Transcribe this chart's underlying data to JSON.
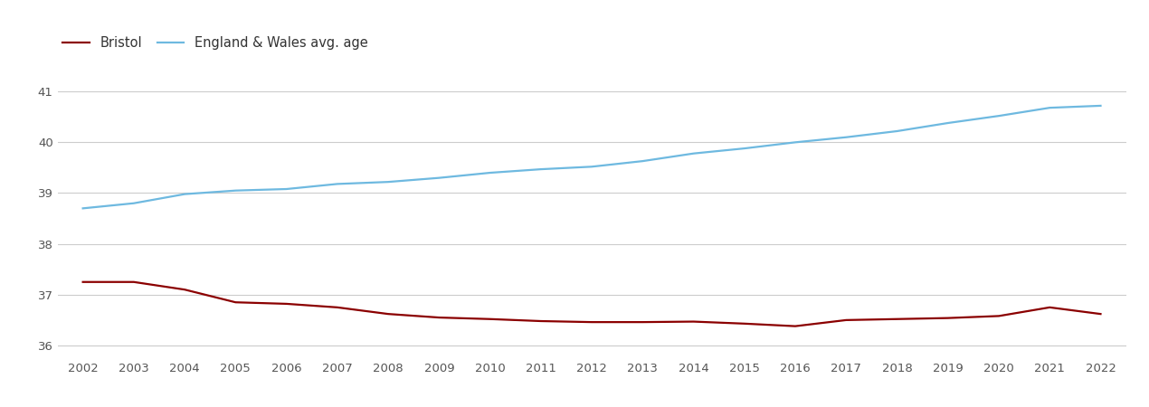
{
  "years": [
    2002,
    2003,
    2004,
    2005,
    2006,
    2007,
    2008,
    2009,
    2010,
    2011,
    2012,
    2013,
    2014,
    2015,
    2016,
    2017,
    2018,
    2019,
    2020,
    2021,
    2022
  ],
  "bristol": [
    37.25,
    37.25,
    37.1,
    36.85,
    36.82,
    36.75,
    36.62,
    36.55,
    36.52,
    36.48,
    36.46,
    36.46,
    36.47,
    36.43,
    36.38,
    36.5,
    36.52,
    36.54,
    36.58,
    36.75,
    36.62
  ],
  "england_wales": [
    38.7,
    38.8,
    38.98,
    39.05,
    39.08,
    39.18,
    39.22,
    39.3,
    39.4,
    39.47,
    39.52,
    39.63,
    39.78,
    39.88,
    40.0,
    40.1,
    40.22,
    40.38,
    40.52,
    40.68,
    40.72
  ],
  "bristol_color": "#8B0000",
  "england_wales_color": "#6EB9E0",
  "bristol_label": "Bristol",
  "england_wales_label": "England & Wales avg. age",
  "ylim": [
    35.75,
    41.6
  ],
  "yticks": [
    36,
    37,
    38,
    39,
    40,
    41
  ],
  "background_color": "#ffffff",
  "grid_color": "#cccccc",
  "line_width": 1.6
}
